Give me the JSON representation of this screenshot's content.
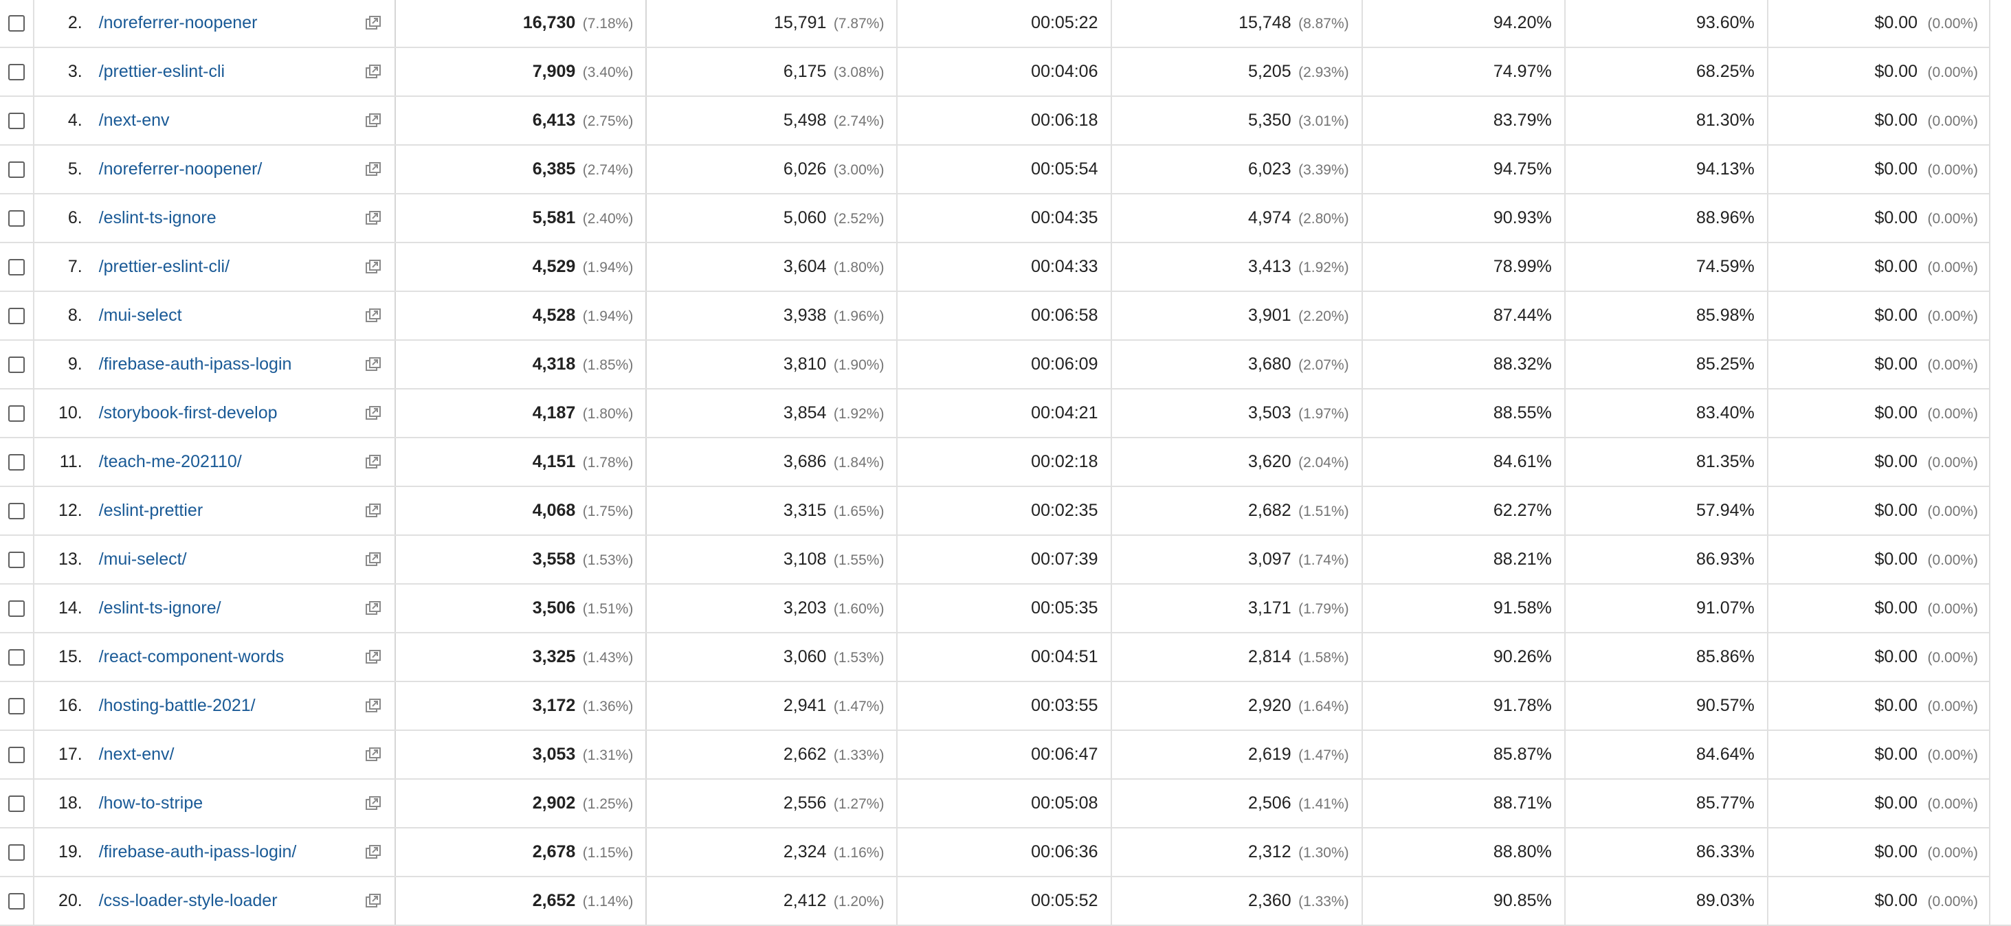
{
  "table": {
    "rows": [
      {
        "index": "2.",
        "page": "/noreferrer-noopener",
        "pageviews": "16,730",
        "pageviews_pct": "(7.18%)",
        "unique_pageviews": "15,791",
        "unique_pct": "(7.87%)",
        "avg_time": "00:05:22",
        "entrances": "15,748",
        "entrances_pct": "(8.87%)",
        "bounce_rate": "94.20%",
        "exit_pct": "93.60%",
        "page_value": "$0.00",
        "page_value_pct": "(0.00%)"
      },
      {
        "index": "3.",
        "page": "/prettier-eslint-cli",
        "pageviews": "7,909",
        "pageviews_pct": "(3.40%)",
        "unique_pageviews": "6,175",
        "unique_pct": "(3.08%)",
        "avg_time": "00:04:06",
        "entrances": "5,205",
        "entrances_pct": "(2.93%)",
        "bounce_rate": "74.97%",
        "exit_pct": "68.25%",
        "page_value": "$0.00",
        "page_value_pct": "(0.00%)"
      },
      {
        "index": "4.",
        "page": "/next-env",
        "pageviews": "6,413",
        "pageviews_pct": "(2.75%)",
        "unique_pageviews": "5,498",
        "unique_pct": "(2.74%)",
        "avg_time": "00:06:18",
        "entrances": "5,350",
        "entrances_pct": "(3.01%)",
        "bounce_rate": "83.79%",
        "exit_pct": "81.30%",
        "page_value": "$0.00",
        "page_value_pct": "(0.00%)"
      },
      {
        "index": "5.",
        "page": "/noreferrer-noopener/",
        "pageviews": "6,385",
        "pageviews_pct": "(2.74%)",
        "unique_pageviews": "6,026",
        "unique_pct": "(3.00%)",
        "avg_time": "00:05:54",
        "entrances": "6,023",
        "entrances_pct": "(3.39%)",
        "bounce_rate": "94.75%",
        "exit_pct": "94.13%",
        "page_value": "$0.00",
        "page_value_pct": "(0.00%)"
      },
      {
        "index": "6.",
        "page": "/eslint-ts-ignore",
        "pageviews": "5,581",
        "pageviews_pct": "(2.40%)",
        "unique_pageviews": "5,060",
        "unique_pct": "(2.52%)",
        "avg_time": "00:04:35",
        "entrances": "4,974",
        "entrances_pct": "(2.80%)",
        "bounce_rate": "90.93%",
        "exit_pct": "88.96%",
        "page_value": "$0.00",
        "page_value_pct": "(0.00%)"
      },
      {
        "index": "7.",
        "page": "/prettier-eslint-cli/",
        "pageviews": "4,529",
        "pageviews_pct": "(1.94%)",
        "unique_pageviews": "3,604",
        "unique_pct": "(1.80%)",
        "avg_time": "00:04:33",
        "entrances": "3,413",
        "entrances_pct": "(1.92%)",
        "bounce_rate": "78.99%",
        "exit_pct": "74.59%",
        "page_value": "$0.00",
        "page_value_pct": "(0.00%)"
      },
      {
        "index": "8.",
        "page": "/mui-select",
        "pageviews": "4,528",
        "pageviews_pct": "(1.94%)",
        "unique_pageviews": "3,938",
        "unique_pct": "(1.96%)",
        "avg_time": "00:06:58",
        "entrances": "3,901",
        "entrances_pct": "(2.20%)",
        "bounce_rate": "87.44%",
        "exit_pct": "85.98%",
        "page_value": "$0.00",
        "page_value_pct": "(0.00%)"
      },
      {
        "index": "9.",
        "page": "/firebase-auth-ipass-login",
        "pageviews": "4,318",
        "pageviews_pct": "(1.85%)",
        "unique_pageviews": "3,810",
        "unique_pct": "(1.90%)",
        "avg_time": "00:06:09",
        "entrances": "3,680",
        "entrances_pct": "(2.07%)",
        "bounce_rate": "88.32%",
        "exit_pct": "85.25%",
        "page_value": "$0.00",
        "page_value_pct": "(0.00%)"
      },
      {
        "index": "10.",
        "page": "/storybook-first-develop",
        "pageviews": "4,187",
        "pageviews_pct": "(1.80%)",
        "unique_pageviews": "3,854",
        "unique_pct": "(1.92%)",
        "avg_time": "00:04:21",
        "entrances": "3,503",
        "entrances_pct": "(1.97%)",
        "bounce_rate": "88.55%",
        "exit_pct": "83.40%",
        "page_value": "$0.00",
        "page_value_pct": "(0.00%)"
      },
      {
        "index": "11.",
        "page": "/teach-me-202110/",
        "pageviews": "4,151",
        "pageviews_pct": "(1.78%)",
        "unique_pageviews": "3,686",
        "unique_pct": "(1.84%)",
        "avg_time": "00:02:18",
        "entrances": "3,620",
        "entrances_pct": "(2.04%)",
        "bounce_rate": "84.61%",
        "exit_pct": "81.35%",
        "page_value": "$0.00",
        "page_value_pct": "(0.00%)"
      },
      {
        "index": "12.",
        "page": "/eslint-prettier",
        "pageviews": "4,068",
        "pageviews_pct": "(1.75%)",
        "unique_pageviews": "3,315",
        "unique_pct": "(1.65%)",
        "avg_time": "00:02:35",
        "entrances": "2,682",
        "entrances_pct": "(1.51%)",
        "bounce_rate": "62.27%",
        "exit_pct": "57.94%",
        "page_value": "$0.00",
        "page_value_pct": "(0.00%)"
      },
      {
        "index": "13.",
        "page": "/mui-select/",
        "pageviews": "3,558",
        "pageviews_pct": "(1.53%)",
        "unique_pageviews": "3,108",
        "unique_pct": "(1.55%)",
        "avg_time": "00:07:39",
        "entrances": "3,097",
        "entrances_pct": "(1.74%)",
        "bounce_rate": "88.21%",
        "exit_pct": "86.93%",
        "page_value": "$0.00",
        "page_value_pct": "(0.00%)"
      },
      {
        "index": "14.",
        "page": "/eslint-ts-ignore/",
        "pageviews": "3,506",
        "pageviews_pct": "(1.51%)",
        "unique_pageviews": "3,203",
        "unique_pct": "(1.60%)",
        "avg_time": "00:05:35",
        "entrances": "3,171",
        "entrances_pct": "(1.79%)",
        "bounce_rate": "91.58%",
        "exit_pct": "91.07%",
        "page_value": "$0.00",
        "page_value_pct": "(0.00%)"
      },
      {
        "index": "15.",
        "page": "/react-component-words",
        "pageviews": "3,325",
        "pageviews_pct": "(1.43%)",
        "unique_pageviews": "3,060",
        "unique_pct": "(1.53%)",
        "avg_time": "00:04:51",
        "entrances": "2,814",
        "entrances_pct": "(1.58%)",
        "bounce_rate": "90.26%",
        "exit_pct": "85.86%",
        "page_value": "$0.00",
        "page_value_pct": "(0.00%)"
      },
      {
        "index": "16.",
        "page": "/hosting-battle-2021/",
        "pageviews": "3,172",
        "pageviews_pct": "(1.36%)",
        "unique_pageviews": "2,941",
        "unique_pct": "(1.47%)",
        "avg_time": "00:03:55",
        "entrances": "2,920",
        "entrances_pct": "(1.64%)",
        "bounce_rate": "91.78%",
        "exit_pct": "90.57%",
        "page_value": "$0.00",
        "page_value_pct": "(0.00%)"
      },
      {
        "index": "17.",
        "page": "/next-env/",
        "pageviews": "3,053",
        "pageviews_pct": "(1.31%)",
        "unique_pageviews": "2,662",
        "unique_pct": "(1.33%)",
        "avg_time": "00:06:47",
        "entrances": "2,619",
        "entrances_pct": "(1.47%)",
        "bounce_rate": "85.87%",
        "exit_pct": "84.64%",
        "page_value": "$0.00",
        "page_value_pct": "(0.00%)"
      },
      {
        "index": "18.",
        "page": "/how-to-stripe",
        "pageviews": "2,902",
        "pageviews_pct": "(1.25%)",
        "unique_pageviews": "2,556",
        "unique_pct": "(1.27%)",
        "avg_time": "00:05:08",
        "entrances": "2,506",
        "entrances_pct": "(1.41%)",
        "bounce_rate": "88.71%",
        "exit_pct": "85.77%",
        "page_value": "$0.00",
        "page_value_pct": "(0.00%)"
      },
      {
        "index": "19.",
        "page": "/firebase-auth-ipass-login/",
        "pageviews": "2,678",
        "pageviews_pct": "(1.15%)",
        "unique_pageviews": "2,324",
        "unique_pct": "(1.16%)",
        "avg_time": "00:06:36",
        "entrances": "2,312",
        "entrances_pct": "(1.30%)",
        "bounce_rate": "88.80%",
        "exit_pct": "86.33%",
        "page_value": "$0.00",
        "page_value_pct": "(0.00%)"
      },
      {
        "index": "20.",
        "page": "/css-loader-style-loader",
        "pageviews": "2,652",
        "pageviews_pct": "(1.14%)",
        "unique_pageviews": "2,412",
        "unique_pct": "(1.20%)",
        "avg_time": "00:05:52",
        "entrances": "2,360",
        "entrances_pct": "(1.33%)",
        "bounce_rate": "90.85%",
        "exit_pct": "89.03%",
        "page_value": "$0.00",
        "page_value_pct": "(0.00%)"
      }
    ]
  },
  "icons": {
    "open_in_new": "open-page-in-new-window-icon"
  },
  "colors": {
    "link": "#1a5a96",
    "muted": "#757575",
    "gridline": "#e0e0e0"
  }
}
